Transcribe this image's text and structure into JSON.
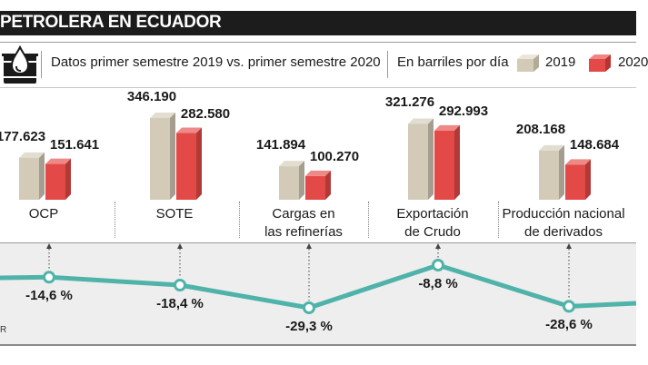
{
  "title": "PETROLERA EN ECUADOR",
  "subtitle": "Datos primer semestre 2019 vs. primer semestre 2020",
  "units": "En barriles por día",
  "legend": [
    {
      "label": "2019",
      "color": "#d3cbb8"
    },
    {
      "label": "2020",
      "color": "#e34a47"
    }
  ],
  "colors": {
    "y2019": "#d3cbb8",
    "y2020": "#e34a47",
    "line": "#4fb3a9",
    "header_bg": "#1c1c1c",
    "panel_bg": "#eeeeee"
  },
  "icon": "oil-drop-barrel-icon",
  "footer_letter": "R",
  "chart_data": [
    {
      "type": "bar",
      "categories": [
        "OCP",
        "SOTE",
        "Cargas en las refinerías",
        "Exportación de Crudo",
        "Producción nacional de derivados"
      ],
      "series": [
        {
          "name": "2019",
          "values": [
            177623,
            346190,
            141894,
            321276,
            208168
          ]
        },
        {
          "name": "2020",
          "values": [
            151641,
            282580,
            100270,
            292993,
            148684
          ]
        }
      ],
      "value_labels": {
        "2019": [
          "177.623",
          "346.190",
          "141.894",
          "321.276",
          "208.168"
        ],
        "2020": [
          "151.641",
          "282.580",
          "100.270",
          "292.993",
          "148.684"
        ]
      },
      "title": "PETROLERA EN ECUADOR",
      "ylabel": "En barriles por día"
    },
    {
      "type": "line",
      "categories": [
        "OCP",
        "SOTE",
        "Cargas en las refinerías",
        "Exportación de Crudo",
        "Producción nacional de derivados"
      ],
      "values": [
        -14.6,
        -18.4,
        -29.3,
        -8.8,
        -28.6
      ],
      "labels": [
        "-14,6 %",
        "-18,4 %",
        "-29,3 %",
        "-8,8 %",
        "-28,6 %"
      ]
    }
  ]
}
